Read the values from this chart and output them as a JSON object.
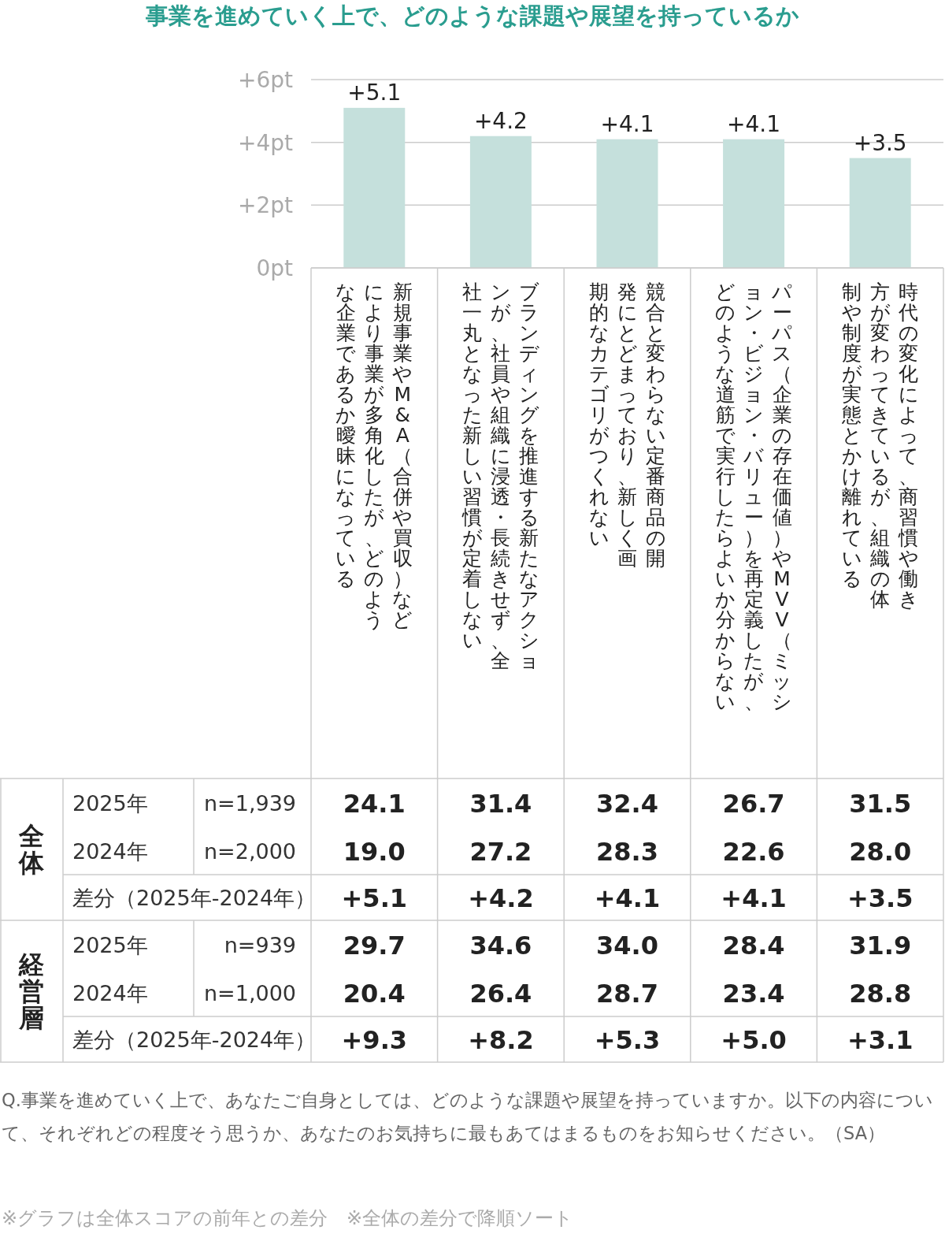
{
  "chart_data": [
    {
      "type": "bar",
      "title": "事業を進めていく上で、どのような課題や展望を持っているか",
      "categories": [
        "新規事業やM&A（合併や買収）などにより事業が多角化したが、どのような企業であるか曖昧になっている",
        "ブランディングを推進する新たなアクションが、社員や組織に浸透・長続きせず、全社一丸となった新しい習慣が定着しない",
        "競合と変わらない定番商品の開発にとどまっており、新しく画期的なカテゴリがつくれない",
        "パーパス（企業の存在価値）やMVV（ミッション・ビジョン・バリュー）を再定義したが、どのような道筋で実行したらよいか分からない",
        "時代の変化によって、商習慣や働き方が変わってきているが、組織の体制や制度が実態とかけ離れている"
      ],
      "values": [
        5.1,
        4.2,
        4.1,
        4.1,
        3.5
      ],
      "value_labels": [
        "+5.1",
        "+4.2",
        "+4.1",
        "+4.1",
        "+3.5"
      ],
      "color": "#c5e0dc",
      "ylim": [
        0,
        6
      ],
      "yticks": [
        {
          "value": 0,
          "label": "0pt"
        },
        {
          "value": 2,
          "label": "+2pt"
        },
        {
          "value": 4,
          "label": "+4pt"
        },
        {
          "value": 6,
          "label": "+6pt"
        }
      ],
      "grid": "y"
    },
    {
      "type": "heatmap",
      "categories": [
        null,
        null,
        null,
        null,
        null
      ],
      "y_categories": [
        "2025年",
        "2024年",
        "差分（2025年-2024年）",
        "2025年",
        "2024年",
        "差分（2025年-2024年）"
      ],
      "y2_categories": [
        "n=1,939",
        "n=2,000",
        null,
        "n=939",
        "n=1,000",
        null
      ],
      "cells": [
        [
          24.1,
          31.4,
          32.4,
          26.7,
          31.5
        ],
        [
          19.0,
          27.2,
          28.3,
          22.6,
          28.0
        ],
        [
          5.1,
          4.2,
          4.1,
          4.1,
          3.5
        ],
        [
          29.7,
          34.6,
          34.0,
          28.4,
          31.9
        ],
        [
          20.4,
          26.4,
          28.7,
          23.4,
          28.8
        ],
        [
          9.3,
          8.2,
          5.3,
          5.0,
          3.1
        ]
      ],
      "cell_labels": [
        [
          "24.1",
          "31.4",
          "32.4",
          "26.7",
          "31.5"
        ],
        [
          "19.0",
          "27.2",
          "28.3",
          "22.6",
          "28.0"
        ],
        [
          "+5.1",
          "+4.2",
          "+4.1",
          "+4.1",
          "+3.5"
        ],
        [
          "29.7",
          "34.6",
          "34.0",
          "28.4",
          "31.9"
        ],
        [
          "20.4",
          "26.4",
          "28.7",
          "23.4",
          "28.8"
        ],
        [
          "+9.3",
          "+8.2",
          "+5.3",
          "+5.0",
          "+3.1"
        ]
      ],
      "annotations": [
        "全体",
        "経営層",
        "Q.事業を進めていく上で、あなたご自身としては、どのような課題や展望を持っていますか。以下の内容について、それぞれどの程度そう思うか、あなたのお気持ちに最もあてはまるものをお知らせください。（SA）",
        "※グラフは全体スコアの前年との差分　※全体の差分で降順ソート"
      ]
    }
  ]
}
